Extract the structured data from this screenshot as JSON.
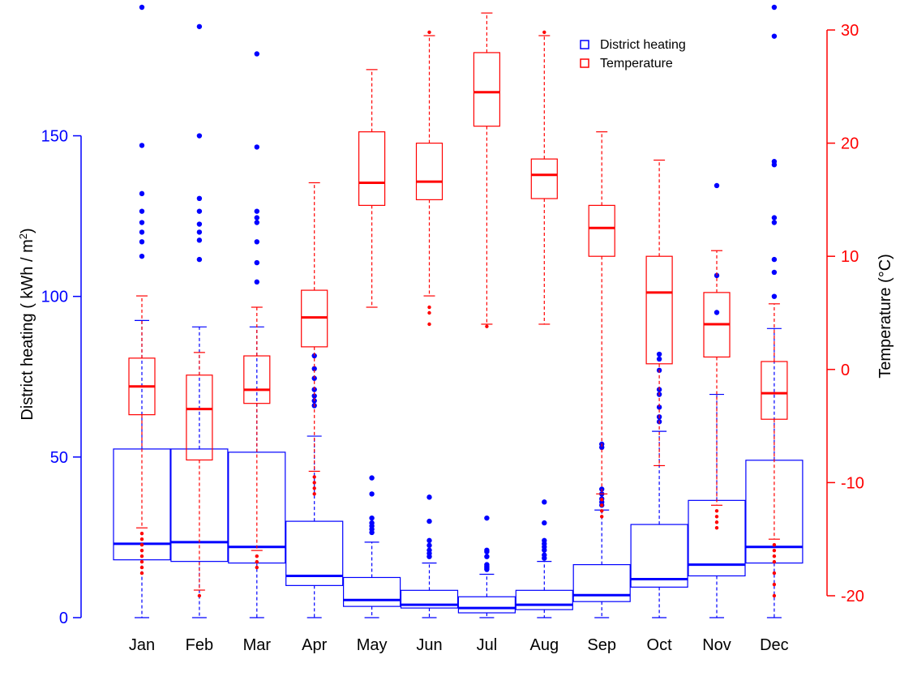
{
  "chart_data": {
    "type": "boxplot",
    "title": "",
    "categories": [
      "Jan",
      "Feb",
      "Mar",
      "Apr",
      "May",
      "Jun",
      "Jul",
      "Aug",
      "Sep",
      "Oct",
      "Nov",
      "Dec"
    ],
    "y_left": {
      "label_prefix": "District heating ( kWh / m",
      "label_sup": "2",
      "label_suffix": ")",
      "ticks": [
        0,
        50,
        100,
        150
      ],
      "range": [
        0,
        190
      ],
      "color": "#0000ff"
    },
    "y_right": {
      "label": "Temperature (°C)",
      "ticks": [
        -20,
        -10,
        0,
        10,
        20,
        30
      ],
      "range": [
        -21.5,
        31.5
      ],
      "color": "#ff0000"
    },
    "legend": {
      "position": "top-right",
      "items": [
        {
          "label": "District heating",
          "color": "#0000ff"
        },
        {
          "label": "Temperature",
          "color": "#ff0000"
        }
      ]
    },
    "series": [
      {
        "name": "District heating",
        "color": "#0000ff",
        "axis": "left",
        "boxes": [
          {
            "min": 0,
            "q1": 18,
            "median": 23,
            "q3": 52.5,
            "max": 92.5,
            "outliers": [
              190,
              147,
              132,
              126.5,
              123,
              120,
              117,
              112.5
            ]
          },
          {
            "min": 0,
            "q1": 17.5,
            "median": 23.5,
            "q3": 52.5,
            "max": 90.5,
            "outliers": [
              184,
              150,
              130.5,
              126.5,
              122.5,
              120,
              117.5,
              111.5
            ]
          },
          {
            "min": 0,
            "q1": 17,
            "median": 22,
            "q3": 51.5,
            "max": 90.5,
            "outliers": [
              175.5,
              146.5,
              126.5,
              124.5,
              123,
              117,
              110.5,
              104.5
            ]
          },
          {
            "min": 0,
            "q1": 10,
            "median": 13,
            "q3": 30,
            "max": 56.5,
            "outliers": [
              81.5,
              77.5,
              74.5,
              71,
              69,
              67.5,
              66
            ]
          },
          {
            "min": 0,
            "q1": 3.5,
            "median": 5.5,
            "q3": 12.5,
            "max": 23.5,
            "outliers": [
              43.5,
              38.5,
              31,
              29.5,
              28.5,
              27.5,
              26.5
            ]
          },
          {
            "min": 0,
            "q1": 3,
            "median": 4,
            "q3": 8.5,
            "max": 17,
            "outliers": [
              37.5,
              30,
              24,
              22.5,
              21,
              20,
              19
            ]
          },
          {
            "min": 0,
            "q1": 1.5,
            "median": 3,
            "q3": 6.5,
            "max": 13.5,
            "outliers": [
              31,
              21,
              20.5,
              19,
              16.5,
              16,
              15.5,
              15
            ]
          },
          {
            "min": 0,
            "q1": 2.5,
            "median": 4,
            "q3": 8.5,
            "max": 17.5,
            "outliers": [
              36,
              29.5,
              24,
              23,
              22,
              21,
              19.5,
              18.5
            ]
          },
          {
            "min": 0,
            "q1": 5,
            "median": 7,
            "q3": 16.5,
            "max": 33.5,
            "outliers": [
              54,
              53,
              40,
              38.5,
              37,
              36,
              35
            ]
          },
          {
            "min": 0,
            "q1": 9.5,
            "median": 12,
            "q3": 29,
            "max": 58,
            "outliers": [
              82,
              80.5,
              77,
              71,
              69.5,
              65.5,
              62.5,
              61
            ]
          },
          {
            "min": 0,
            "q1": 13,
            "median": 16.5,
            "q3": 36.5,
            "max": 69.5,
            "outliers": [
              134.5,
              106.5,
              95
            ]
          },
          {
            "min": 0,
            "q1": 17,
            "median": 22,
            "q3": 49,
            "max": 90,
            "outliers": [
              190,
              181,
              142,
              141,
              124.5,
              123,
              111.5,
              107.5,
              100
            ]
          }
        ]
      },
      {
        "name": "Temperature",
        "color": "#ff0000",
        "axis": "right",
        "boxes": [
          {
            "min": -14,
            "q1": -4,
            "median": -1.5,
            "q3": 1,
            "max": 6.5,
            "outliers": [
              -14.5,
              -15,
              -15.5,
              -16,
              -16.5,
              -17,
              -17.5,
              -18
            ]
          },
          {
            "min": -19.5,
            "q1": -8,
            "median": -3.5,
            "q3": -0.5,
            "max": 1.5,
            "outliers": [
              -20
            ]
          },
          {
            "min": -16,
            "q1": -3,
            "median": -1.8,
            "q3": 1.2,
            "max": 5.5,
            "outliers": [
              -16.5,
              -17,
              -17.5
            ]
          },
          {
            "min": -9,
            "q1": 2,
            "median": 4.6,
            "q3": 7,
            "max": 16.5,
            "outliers": [
              -9.5,
              -10,
              -10.5,
              -11
            ]
          },
          {
            "min": 5.5,
            "q1": 14.5,
            "median": 16.5,
            "q3": 21,
            "max": 26.5,
            "outliers": []
          },
          {
            "min": 6.5,
            "q1": 15,
            "median": 16.6,
            "q3": 20,
            "max": 29.5,
            "outliers": [
              5.5,
              5,
              4,
              29.8
            ]
          },
          {
            "min": 4,
            "q1": 21.5,
            "median": 24.5,
            "q3": 28,
            "max": 31.5,
            "outliers": [
              3.8
            ]
          },
          {
            "min": 4,
            "q1": 15.1,
            "median": 17.2,
            "q3": 18.6,
            "max": 29.5,
            "outliers": [
              29.8
            ]
          },
          {
            "min": -11,
            "q1": 10,
            "median": 12.5,
            "q3": 14.5,
            "max": 21,
            "outliers": [
              -11.5,
              -12,
              -12.5,
              -13
            ]
          },
          {
            "min": -8.5,
            "q1": 0.5,
            "median": 6.8,
            "q3": 10,
            "max": 18.5,
            "outliers": []
          },
          {
            "min": -12,
            "q1": 1.1,
            "median": 4,
            "q3": 6.8,
            "max": 10.5,
            "outliers": [
              -12.5,
              -13,
              -13.5,
              -14
            ]
          },
          {
            "min": -15,
            "q1": -4.4,
            "median": -2.1,
            "q3": 0.7,
            "max": 5.8,
            "outliers": [
              -15.5,
              -16,
              -16.5,
              -17,
              -18,
              -19,
              -20
            ]
          }
        ]
      }
    ]
  }
}
